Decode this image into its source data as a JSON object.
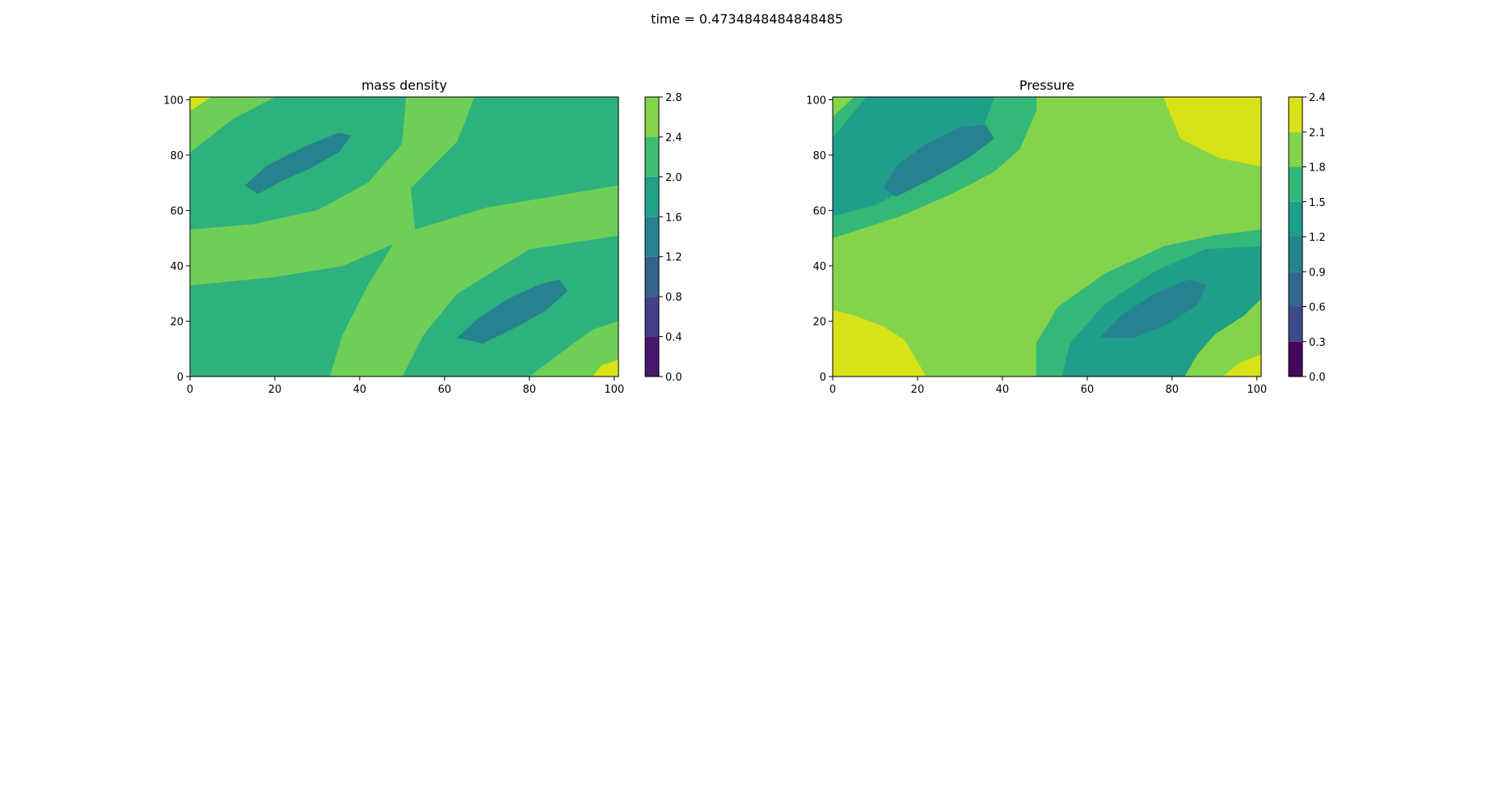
{
  "suptitle": "time = 0.4734848484848485",
  "chart_data": [
    {
      "type": "contour",
      "title": "mass density",
      "xlim": [
        0,
        101
      ],
      "ylim": [
        0,
        101
      ],
      "xticks": [
        "0",
        "20",
        "40",
        "60",
        "80",
        "100"
      ],
      "yticks": [
        "0",
        "20",
        "40",
        "60",
        "80",
        "100"
      ],
      "colorbar": {
        "levels": [
          0.0,
          0.4,
          0.8,
          1.2,
          1.6,
          2.0,
          2.4,
          2.8
        ],
        "tick_labels": [
          "0.0",
          "0.4",
          "0.8",
          "1.2",
          "1.6",
          "2.0",
          "2.4",
          "2.8"
        ],
        "colors": [
          "#48186a",
          "#424086",
          "#33638d",
          "#26828e",
          "#1fa088",
          "#3fbc73",
          "#84d44b",
          "#d8e219"
        ]
      },
      "regions": [
        {
          "level_band": [
            1.6,
            2.0
          ],
          "color": "#2db27d",
          "polygon": [
            [
              0,
              0
            ],
            [
              101,
              0
            ],
            [
              101,
              101
            ],
            [
              0,
              101
            ]
          ]
        },
        {
          "level_band": [
            2.0,
            2.4
          ],
          "color": "#6ece58",
          "polygon": [
            [
              0,
              101
            ],
            [
              20,
              101
            ],
            [
              10,
              93
            ],
            [
              0,
              81
            ]
          ]
        },
        {
          "level_band": [
            2.4,
            2.8
          ],
          "color": "#d8e219",
          "polygon": [
            [
              0,
              101
            ],
            [
              5,
              101
            ],
            [
              0,
              96
            ]
          ]
        },
        {
          "level_band": [
            2.0,
            2.4
          ],
          "color": "#6ece58",
          "polygon": [
            [
              0,
              53
            ],
            [
              15,
              55
            ],
            [
              30,
              60
            ],
            [
              42,
              70
            ],
            [
              50,
              84
            ],
            [
              51,
              101
            ],
            [
              67,
              101
            ],
            [
              63,
              85
            ],
            [
              52,
              68
            ],
            [
              53,
              53
            ],
            [
              48,
              48
            ],
            [
              36,
              40
            ],
            [
              20,
              36
            ],
            [
              0,
              33
            ]
          ]
        },
        {
          "level_band": [
            2.0,
            2.4
          ],
          "color": "#6ece58",
          "polygon": [
            [
              53,
              53
            ],
            [
              70,
              61
            ],
            [
              101,
              69
            ],
            [
              101,
              51
            ],
            [
              80,
              46
            ],
            [
              63,
              30
            ],
            [
              55,
              15
            ],
            [
              50,
              0
            ],
            [
              33,
              0
            ],
            [
              36,
              15
            ],
            [
              42,
              33
            ],
            [
              48,
              48
            ]
          ]
        },
        {
          "level_band": [
            1.2,
            1.6
          ],
          "color": "#26828e",
          "polygon": [
            [
              13,
              69
            ],
            [
              18,
              76
            ],
            [
              27,
              83
            ],
            [
              35,
              88
            ],
            [
              38,
              87
            ],
            [
              35,
              81
            ],
            [
              28,
              75
            ],
            [
              22,
              71
            ],
            [
              16,
              66
            ]
          ]
        },
        {
          "level_band": [
            1.2,
            1.6
          ],
          "color": "#26828e",
          "polygon": [
            [
              63,
              14
            ],
            [
              68,
              21
            ],
            [
              75,
              28
            ],
            [
              82,
              33
            ],
            [
              87,
              35
            ],
            [
              89,
              31
            ],
            [
              84,
              24
            ],
            [
              77,
              18
            ],
            [
              69,
              12
            ]
          ]
        },
        {
          "level_band": [
            2.0,
            2.4
          ],
          "color": "#6ece58",
          "polygon": [
            [
              80,
              0
            ],
            [
              101,
              0
            ],
            [
              101,
              20
            ],
            [
              95,
              17
            ],
            [
              87,
              8
            ]
          ]
        },
        {
          "level_band": [
            2.4,
            2.8
          ],
          "color": "#d8e219",
          "polygon": [
            [
              95,
              0
            ],
            [
              101,
              0
            ],
            [
              101,
              6
            ],
            [
              97,
              4
            ]
          ]
        }
      ]
    },
    {
      "type": "contour",
      "title": "Pressure",
      "xlim": [
        0,
        101
      ],
      "ylim": [
        0,
        101
      ],
      "xticks": [
        "0",
        "20",
        "40",
        "60",
        "80",
        "100"
      ],
      "yticks": [
        "0",
        "20",
        "40",
        "60",
        "80",
        "100"
      ],
      "colorbar": {
        "levels": [
          0.0,
          0.3,
          0.6,
          0.9,
          1.2,
          1.5,
          1.8,
          2.1,
          2.4
        ],
        "tick_labels": [
          "0.0",
          "0.3",
          "0.6",
          "0.9",
          "1.2",
          "1.5",
          "1.8",
          "2.1",
          "2.4"
        ],
        "colors": [
          "#46085c",
          "#3e4989",
          "#30688e",
          "#25838e",
          "#1f9e89",
          "#35b779",
          "#84d44b",
          "#d8e219"
        ]
      },
      "regions": [
        {
          "level_band": [
            1.8,
            2.1
          ],
          "color": "#84d44b",
          "polygon": [
            [
              0,
              0
            ],
            [
              101,
              0
            ],
            [
              101,
              101
            ],
            [
              0,
              101
            ]
          ]
        },
        {
          "level_band": [
            1.5,
            1.8
          ],
          "color": "#35b779",
          "polygon": [
            [
              0,
              101
            ],
            [
              48,
              101
            ],
            [
              48,
              96
            ],
            [
              44,
              82
            ],
            [
              38,
              74
            ],
            [
              28,
              66
            ],
            [
              16,
              58
            ],
            [
              0,
              50
            ]
          ]
        },
        {
          "level_band": [
            1.2,
            1.5
          ],
          "color": "#1f9e89",
          "polygon": [
            [
              0,
              86
            ],
            [
              8,
              101
            ],
            [
              38,
              101
            ],
            [
              35,
              88
            ],
            [
              28,
              78
            ],
            [
              20,
              70
            ],
            [
              10,
              62
            ],
            [
              0,
              58
            ]
          ]
        },
        {
          "level_band": [
            0.9,
            1.2
          ],
          "color": "#26828e",
          "polygon": [
            [
              12,
              68
            ],
            [
              15,
              76
            ],
            [
              22,
              84
            ],
            [
              30,
              90
            ],
            [
              36,
              91
            ],
            [
              38,
              86
            ],
            [
              32,
              79
            ],
            [
              24,
              72
            ],
            [
              15,
              65
            ]
          ]
        },
        {
          "level_band": [
            2.1,
            2.4
          ],
          "color": "#d8e219",
          "polygon": [
            [
              0,
              101
            ],
            [
              5,
              101
            ],
            [
              0,
              94
            ]
          ]
        },
        {
          "level_band": [
            1.8,
            2.1
          ],
          "color": "#84d44b",
          "polygon": [
            [
              0,
              101
            ],
            [
              0,
              94
            ],
            [
              5,
              101
            ]
          ]
        },
        {
          "level_band": [
            2.1,
            2.4
          ],
          "color": "#d8e219",
          "polygon": [
            [
              78,
              101
            ],
            [
              101,
              101
            ],
            [
              101,
              76
            ],
            [
              91,
              79
            ],
            [
              82,
              86
            ]
          ]
        },
        {
          "level_band": [
            2.1,
            2.4
          ],
          "color": "#d8e219",
          "polygon": [
            [
              0,
              0
            ],
            [
              22,
              0
            ],
            [
              17,
              13
            ],
            [
              12,
              18
            ],
            [
              5,
              22
            ],
            [
              0,
              24
            ]
          ]
        },
        {
          "level_band": [
            1.5,
            1.8
          ],
          "color": "#35b779",
          "polygon": [
            [
              48,
              0
            ],
            [
              101,
              0
            ],
            [
              101,
              53
            ],
            [
              90,
              51
            ],
            [
              78,
              47
            ],
            [
              64,
              37
            ],
            [
              53,
              25
            ],
            [
              48,
              12
            ]
          ]
        },
        {
          "level_band": [
            1.2,
            1.5
          ],
          "color": "#1f9e89",
          "polygon": [
            [
              54,
              0
            ],
            [
              84,
              0
            ],
            [
              88,
              8
            ],
            [
              95,
              18
            ],
            [
              101,
              24
            ],
            [
              101,
              47
            ],
            [
              88,
              46
            ],
            [
              76,
              38
            ],
            [
              64,
              26
            ],
            [
              56,
              12
            ]
          ]
        },
        {
          "level_band": [
            0.9,
            1.2
          ],
          "color": "#26828e",
          "polygon": [
            [
              63,
              14
            ],
            [
              68,
              22
            ],
            [
              76,
              30
            ],
            [
              84,
              35
            ],
            [
              88,
              33
            ],
            [
              86,
              26
            ],
            [
              79,
              19
            ],
            [
              71,
              14
            ]
          ]
        },
        {
          "level_band": [
            1.8,
            2.1
          ],
          "color": "#84d44b",
          "polygon": [
            [
              83,
              0
            ],
            [
              101,
              0
            ],
            [
              101,
              28
            ],
            [
              97,
              22
            ],
            [
              90,
              15
            ],
            [
              86,
              8
            ]
          ]
        },
        {
          "level_band": [
            2.1,
            2.4
          ],
          "color": "#d8e219",
          "polygon": [
            [
              92,
              0
            ],
            [
              101,
              0
            ],
            [
              101,
              8
            ],
            [
              96,
              5
            ]
          ]
        }
      ]
    }
  ]
}
